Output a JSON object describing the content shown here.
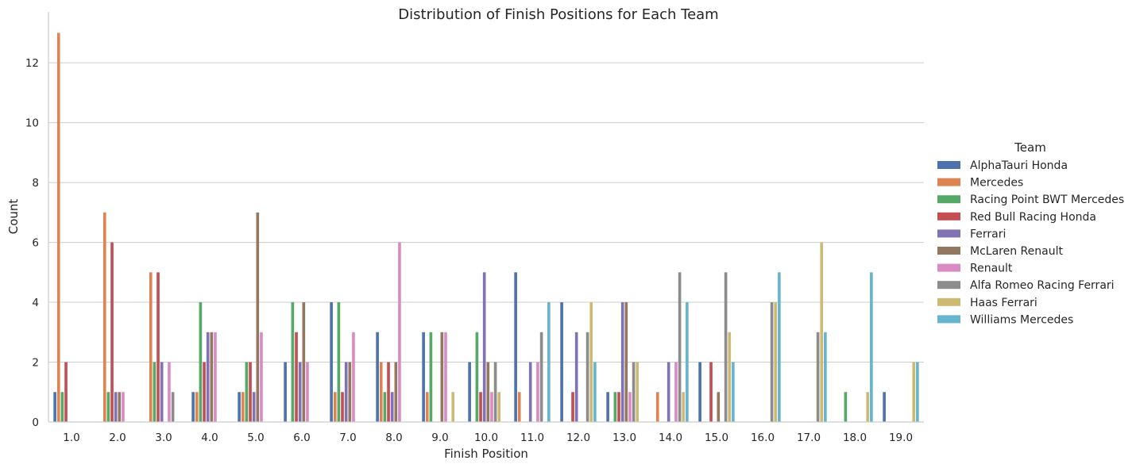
{
  "chart_data": {
    "type": "bar",
    "title": "Distribution of Finish Positions for Each Team",
    "xlabel": "Finish Position",
    "ylabel": "Count",
    "ylim": [
      0,
      13.7
    ],
    "yticks": [
      0,
      2,
      4,
      6,
      8,
      10,
      12
    ],
    "grid": "y",
    "legend": {
      "title": "Team",
      "placement": "right"
    },
    "categories": [
      "1.0",
      "2.0",
      "3.0",
      "4.0",
      "5.0",
      "6.0",
      "7.0",
      "8.0",
      "9.0",
      "10.0",
      "11.0",
      "12.0",
      "13.0",
      "14.0",
      "15.0",
      "16.0",
      "17.0",
      "18.0",
      "19.0"
    ],
    "series": [
      {
        "name": "AlphaTauri Honda",
        "color": "#4c72b0",
        "values": [
          1,
          0,
          0,
          1,
          1,
          2,
          4,
          3,
          3,
          2,
          5,
          4,
          1,
          0,
          2,
          0,
          0,
          0,
          1
        ]
      },
      {
        "name": "Mercedes",
        "color": "#dd8452",
        "values": [
          13,
          7,
          5,
          1,
          1,
          0,
          1,
          2,
          1,
          0,
          1,
          0,
          0,
          1,
          0,
          0,
          0,
          0,
          0
        ]
      },
      {
        "name": "Racing Point BWT Mercedes",
        "color": "#55a868",
        "values": [
          1,
          1,
          2,
          4,
          2,
          4,
          4,
          1,
          3,
          3,
          0,
          0,
          1,
          0,
          0,
          0,
          0,
          1,
          0
        ]
      },
      {
        "name": "Red Bull Racing Honda",
        "color": "#c44e52",
        "values": [
          2,
          6,
          5,
          2,
          2,
          3,
          1,
          2,
          0,
          1,
          0,
          1,
          1,
          0,
          2,
          0,
          0,
          0,
          0
        ]
      },
      {
        "name": "Ferrari",
        "color": "#8172b3",
        "values": [
          0,
          1,
          2,
          3,
          1,
          2,
          2,
          1,
          0,
          5,
          2,
          3,
          4,
          2,
          0,
          0,
          0,
          0,
          0
        ]
      },
      {
        "name": "McLaren Renault",
        "color": "#937860",
        "values": [
          0,
          1,
          0,
          3,
          7,
          4,
          2,
          2,
          3,
          2,
          0,
          0,
          4,
          0,
          1,
          0,
          0,
          0,
          0
        ]
      },
      {
        "name": "Renault",
        "color": "#da8bc3",
        "values": [
          0,
          1,
          2,
          3,
          3,
          2,
          3,
          6,
          3,
          1,
          2,
          0,
          1,
          2,
          0,
          0,
          0,
          0,
          0
        ]
      },
      {
        "name": "Alfa Romeo Racing Ferrari",
        "color": "#8c8c8c",
        "values": [
          0,
          0,
          1,
          0,
          0,
          0,
          0,
          0,
          0,
          2,
          3,
          3,
          2,
          5,
          5,
          4,
          3,
          0,
          0
        ]
      },
      {
        "name": "Haas Ferrari",
        "color": "#ccb974",
        "values": [
          0,
          0,
          0,
          0,
          0,
          0,
          0,
          0,
          1,
          1,
          0,
          4,
          2,
          1,
          3,
          4,
          6,
          1,
          2
        ]
      },
      {
        "name": "Williams Mercedes",
        "color": "#64b5cd",
        "values": [
          0,
          0,
          0,
          0,
          0,
          0,
          0,
          0,
          0,
          0,
          4,
          2,
          0,
          4,
          2,
          5,
          3,
          5,
          2
        ]
      }
    ]
  }
}
